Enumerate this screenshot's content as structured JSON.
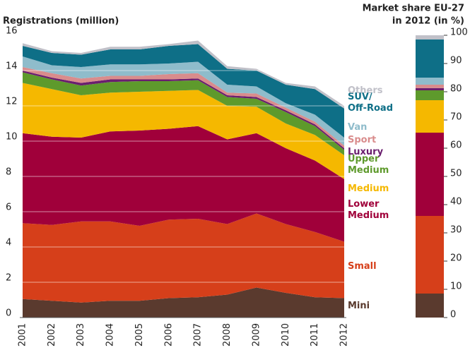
{
  "chart_data": [
    {
      "type": "area",
      "stacked": true,
      "title": "Registrations (million)",
      "categories": [
        "2001",
        "2002",
        "2003",
        "2004",
        "2005",
        "2006",
        "2007",
        "2008",
        "2009",
        "2010",
        "2011",
        "2012"
      ],
      "ylim": [
        0,
        16
      ],
      "yticks": [
        0,
        2,
        4,
        6,
        8,
        10,
        12,
        14,
        16
      ],
      "grid": true,
      "series": [
        {
          "name": "Mini",
          "color": "#5a3a2e",
          "values": [
            1.05,
            0.95,
            0.85,
            0.95,
            0.95,
            1.1,
            1.15,
            1.3,
            1.7,
            1.4,
            1.15,
            1.1
          ]
        },
        {
          "name": "Small",
          "color": "#d63f1a",
          "values": [
            4.3,
            4.3,
            4.6,
            4.5,
            4.25,
            4.45,
            4.45,
            4.0,
            4.2,
            3.9,
            3.7,
            3.2
          ]
        },
        {
          "name": "Lower Medium",
          "color": "#a0003a",
          "values": [
            5.1,
            5.0,
            4.75,
            5.1,
            5.4,
            5.15,
            5.25,
            4.8,
            4.55,
            4.3,
            4.05,
            3.55
          ]
        },
        {
          "name": "Medium",
          "color": "#f5b800",
          "values": [
            2.85,
            2.7,
            2.4,
            2.2,
            2.2,
            2.15,
            2.05,
            1.9,
            1.5,
            1.4,
            1.45,
            1.35
          ]
        },
        {
          "name": "Upper Medium",
          "color": "#5e9a2c",
          "values": [
            0.6,
            0.55,
            0.55,
            0.6,
            0.6,
            0.55,
            0.55,
            0.5,
            0.45,
            0.65,
            0.5,
            0.3
          ]
        },
        {
          "name": "Luxury",
          "color": "#6a1e6e",
          "values": [
            0.1,
            0.1,
            0.15,
            0.15,
            0.1,
            0.1,
            0.1,
            0.1,
            0.1,
            0.1,
            0.1,
            0.1
          ]
        },
        {
          "name": "Sport",
          "color": "#d98c8c",
          "values": [
            0.2,
            0.25,
            0.25,
            0.2,
            0.2,
            0.3,
            0.3,
            0.15,
            0.2,
            0.15,
            0.15,
            0.15
          ]
        },
        {
          "name": "Van",
          "color": "#8fbccb",
          "values": [
            0.6,
            0.45,
            0.65,
            0.65,
            0.65,
            0.6,
            0.65,
            0.45,
            0.4,
            0.25,
            0.4,
            0.45
          ]
        },
        {
          "name": "SUV/ Off-Road",
          "color": "#0e6f87",
          "values": [
            0.6,
            0.7,
            0.7,
            0.85,
            0.85,
            1.0,
            1.0,
            0.9,
            0.9,
            1.05,
            1.45,
            1.65
          ]
        },
        {
          "name": "Others",
          "color": "#c0c0c8",
          "values": [
            0.15,
            0.1,
            0.1,
            0.15,
            0.15,
            0.1,
            0.2,
            0.15,
            0.1,
            0.1,
            0.15,
            0.15
          ]
        }
      ]
    },
    {
      "type": "bar",
      "stacked": true,
      "title": [
        "Market share EU-27",
        "in 2012 (in %)"
      ],
      "ylim": [
        0,
        100
      ],
      "yticks": [
        0,
        10,
        20,
        30,
        40,
        50,
        60,
        70,
        80,
        90,
        100
      ],
      "series": [
        {
          "color": "#5a3a2e",
          "values": [
            8.5
          ]
        },
        {
          "color": "#d63f1a",
          "values": [
            27.5
          ]
        },
        {
          "color": "#a0003a",
          "values": [
            29.5
          ]
        },
        {
          "color": "#f5b800",
          "values": [
            11.5
          ]
        },
        {
          "color": "#5e9a2c",
          "values": [
            3.5
          ]
        },
        {
          "color": "#6a1e6e",
          "values": [
            0.8
          ]
        },
        {
          "color": "#d98c8c",
          "values": [
            1.2
          ]
        },
        {
          "color": "#8fbccb",
          "values": [
            2.5
          ]
        },
        {
          "color": "#0e6f87",
          "values": [
            13.5
          ]
        },
        {
          "color": "#c0c0c8",
          "values": [
            1.5
          ]
        }
      ]
    }
  ]
}
